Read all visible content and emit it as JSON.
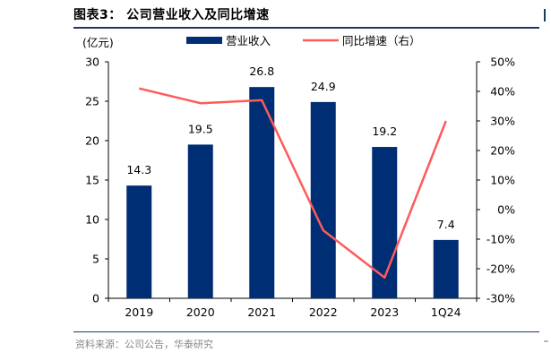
{
  "header": {
    "title": "图表3：  公司营业收入及同比增速"
  },
  "footer": {
    "source": "资料来源：公司公告，华泰研究"
  },
  "chart_data": {
    "type": "bar",
    "categories": [
      "2019",
      "2020",
      "2021",
      "2022",
      "2023",
      "1Q24"
    ],
    "series": [
      {
        "name": "营业收入",
        "type": "bar",
        "axis": "left",
        "color": "#002e74",
        "values": [
          14.3,
          19.5,
          26.8,
          24.9,
          19.2,
          7.4
        ],
        "labels": [
          "14.3",
          "19.5",
          "26.8",
          "24.9",
          "19.2",
          "7.4"
        ]
      },
      {
        "name": "同比增速（右）",
        "type": "line",
        "axis": "right",
        "color": "#ff5a5a",
        "values": [
          41,
          36,
          37,
          -7,
          -23,
          30
        ]
      }
    ],
    "y_left": {
      "unit_label": "(亿元)",
      "ylim": [
        0,
        30
      ],
      "ticks": [
        0,
        5,
        10,
        15,
        20,
        25,
        30
      ],
      "tick_labels": [
        "0",
        "5",
        "10",
        "15",
        "20",
        "25",
        "30"
      ]
    },
    "y_right": {
      "ylim": [
        -30,
        50
      ],
      "ticks": [
        -30,
        -20,
        -10,
        0,
        10,
        20,
        30,
        40,
        50
      ],
      "tick_labels": [
        "-30%",
        "-20%",
        "-10%",
        "0%",
        "10%",
        "20%",
        "30%",
        "40%",
        "50%"
      ]
    },
    "legend_position": "top-center",
    "grid": false
  }
}
